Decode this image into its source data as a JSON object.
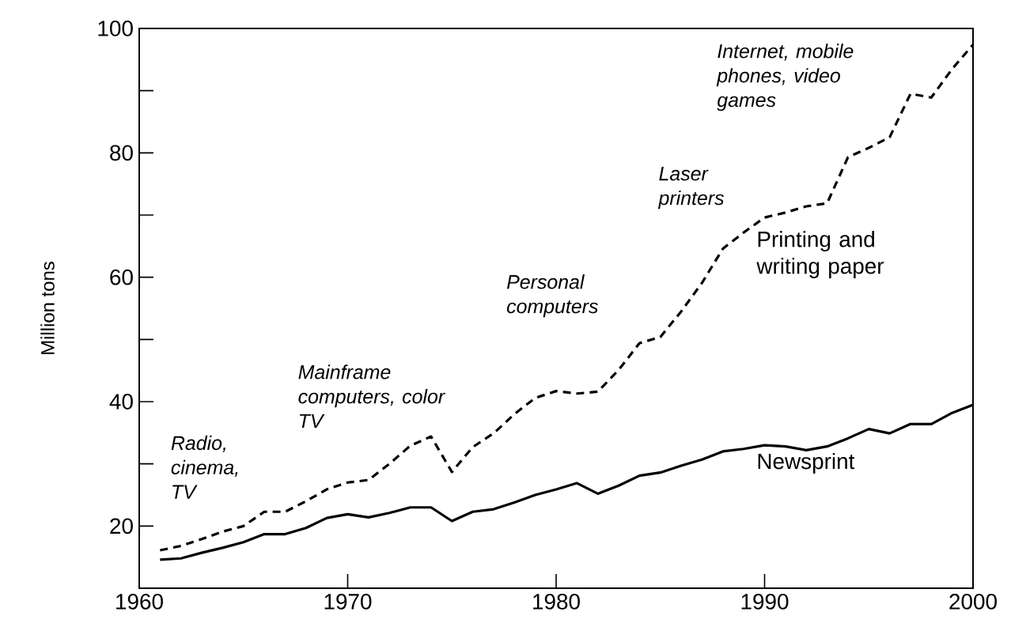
{
  "chart_data": {
    "type": "line",
    "ylabel": "Million tons",
    "x": [
      1961,
      1962,
      1963,
      1964,
      1965,
      1966,
      1967,
      1968,
      1969,
      1970,
      1971,
      1972,
      1973,
      1974,
      1975,
      1976,
      1977,
      1978,
      1979,
      1980,
      1981,
      1982,
      1983,
      1984,
      1985,
      1986,
      1987,
      1988,
      1989,
      1990,
      1991,
      1992,
      1993,
      1994,
      1995,
      1996,
      1997,
      1998,
      1999,
      2000
    ],
    "series": [
      {
        "name": "Printing and writing paper",
        "color": "#000000",
        "line_style": "dashed",
        "values": [
          16.1,
          16.8,
          17.9,
          19.1,
          20,
          22.3,
          22.3,
          24,
          25.9,
          27,
          27.4,
          30,
          32.9,
          34.4,
          28.7,
          32.7,
          34.9,
          38,
          40.6,
          41.7,
          41.3,
          41.6,
          45.1,
          49.4,
          50.4,
          54.5,
          59.1,
          64.6,
          67.2,
          69.6,
          70.4,
          71.4,
          71.9,
          79.3,
          80.8,
          82.5,
          89.5,
          88.9,
          93.5,
          97.4
        ]
      },
      {
        "name": "Newsprint",
        "color": "#000000",
        "line_style": "solid",
        "values": [
          14.6,
          14.8,
          15.7,
          16.5,
          17.4,
          18.7,
          18.7,
          19.7,
          21.3,
          21.9,
          21.4,
          22.1,
          23,
          23,
          20.8,
          22.3,
          22.7,
          23.8,
          25,
          25.9,
          26.9,
          25.2,
          26.5,
          28.1,
          28.6,
          29.7,
          30.7,
          32,
          32.4,
          33,
          32.8,
          32.2,
          32.8,
          34.1,
          35.6,
          34.9,
          36.4,
          36.4,
          38.2,
          39.5
        ]
      }
    ],
    "annotations": [
      "Radio, cinema, TV",
      "Mainframe computers, color TV",
      "Personal computers",
      "Laser printers",
      "Internet, mobile phones, video games"
    ],
    "xlim": [
      1960,
      2000
    ],
    "ylim": [
      10,
      100
    ],
    "xticks": [
      1960,
      1970,
      1980,
      1990,
      2000
    ],
    "yticks": [
      20,
      {
        "value": 30,
        "label": null
      },
      40,
      {
        "value": 50,
        "label": null
      },
      60,
      {
        "value": 70,
        "label": null
      },
      80,
      {
        "value": 90,
        "label": null
      },
      100
    ],
    "grid": false
  }
}
